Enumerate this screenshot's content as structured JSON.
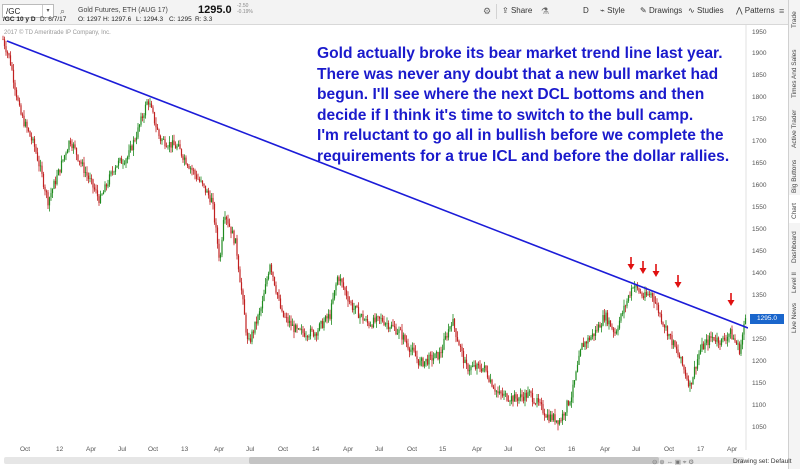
{
  "toolbar": {
    "symbol": "/GC",
    "description": "Gold Futures, ETH (AUG 17)",
    "last_price": "1295.0",
    "change_net": "-2.50",
    "change_pct": "-0.19%",
    "share_label": "Share",
    "d_label": "D",
    "style_label": "Style",
    "drawings_label": "Drawings",
    "studies_label": "Studies",
    "patterns_label": "Patterns"
  },
  "info_bar": {
    "symbol_period": "/GC 10 y D",
    "date": "D: 6/7/17",
    "open": "O: 1297",
    "high": "H: 1297.6",
    "low": "L: 1294.3",
    "close": "C: 1295",
    "range": "R: 3.3"
  },
  "copyright": "2017 © TD Ameritrade IP Company, Inc.",
  "annotation_lines": [
    "Gold actually broke its bear market trend line last year.",
    "There was never any doubt that a new bull market had",
    "begun.  I'll see where the next DCL bottoms and then",
    "decide if I think it's time to switch to the bull camp.",
    "I'm reluctant to go all in bullish before we complete the",
    "requirements for a true ICL and before the dollar rallies."
  ],
  "price_ticks": [
    "1950",
    "1900",
    "1850",
    "1800",
    "1750",
    "1700",
    "1650",
    "1600",
    "1550",
    "1500",
    "1450",
    "1400",
    "1350",
    "1300",
    "1250",
    "1200",
    "1150",
    "1100",
    "1050"
  ],
  "price_last_label": "1295.0",
  "time_ticks": [
    "Oct",
    "12",
    "Apr",
    "Jul",
    "Oct",
    "13",
    "Apr",
    "Jul",
    "Oct",
    "14",
    "Apr",
    "Jul",
    "Oct",
    "15",
    "Apr",
    "Jul",
    "Oct",
    "16",
    "Apr",
    "Jul",
    "Oct",
    "17",
    "Apr"
  ],
  "side_tabs": [
    "Trade",
    "Times And Sales",
    "Active Trader",
    "Big Buttons",
    "Chart",
    "Dashboard",
    "Level II",
    "Live News"
  ],
  "bottom_bar": {
    "drawing_set": "Drawing set: Default"
  },
  "colors": {
    "up": "#1e8a1e",
    "down": "#c02020",
    "trendline": "#1c1cd8",
    "annotation": "#1a1acc",
    "arrow": "#e01010",
    "accent": "#1a66cc"
  },
  "icons": [
    "search-icon",
    "gear-icon",
    "share-icon",
    "flask-icon",
    "style-icon",
    "drawings-icon",
    "studies-icon",
    "patterns-icon",
    "menu-icon"
  ]
}
